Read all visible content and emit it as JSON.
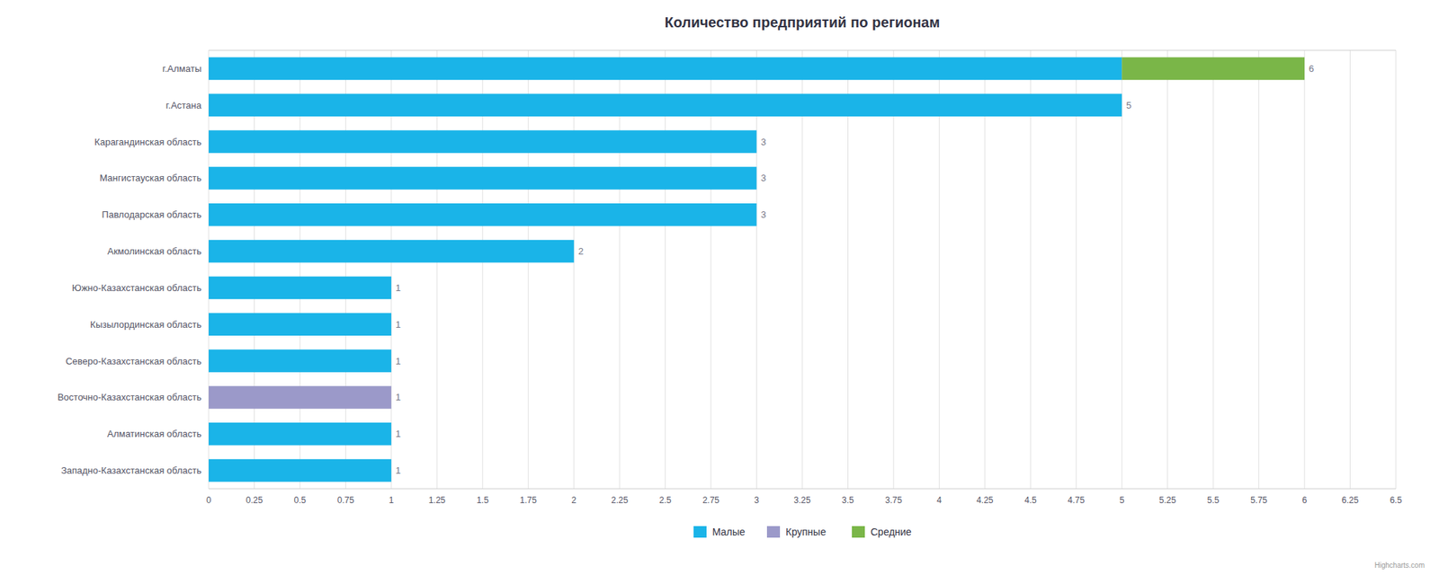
{
  "chart_data": {
    "type": "bar",
    "orientation": "horizontal",
    "stacked": true,
    "title": "Количество предприятий по регионам",
    "categories": [
      "Западно-Казахстанская область",
      "Алматинская область",
      "Восточно-Казахстанская область",
      "Северо-Казахстанская область",
      "Кызылординская область",
      "Южно-Казахстанская область",
      "Акмолинская область",
      "Павлодарская область",
      "Мангистауская область",
      "Карагандинская область",
      "г.Астана",
      "г.Алматы"
    ],
    "series": [
      {
        "name": "Малые",
        "color": "#1ab4e8",
        "values": [
          1,
          1,
          0,
          1,
          1,
          1,
          2,
          3,
          3,
          3,
          5,
          5
        ]
      },
      {
        "name": "Крупные",
        "color": "#9b99c9",
        "values": [
          0,
          0,
          1,
          0,
          0,
          0,
          0,
          0,
          0,
          0,
          0,
          0
        ]
      },
      {
        "name": "Средние",
        "color": "#7ab648",
        "values": [
          0,
          0,
          0,
          0,
          0,
          0,
          0,
          0,
          0,
          0,
          0,
          1
        ]
      }
    ],
    "value_labels": [
      1,
      1,
      1,
      1,
      1,
      1,
      2,
      3,
      3,
      3,
      5,
      6
    ],
    "xlim": [
      0,
      6.5
    ],
    "xticks": [
      0,
      0.25,
      0.5,
      0.75,
      1,
      1.25,
      1.5,
      1.75,
      2,
      2.25,
      2.5,
      2.75,
      3,
      3.25,
      3.5,
      3.75,
      4,
      4.25,
      4.5,
      4.75,
      5,
      5.25,
      5.5,
      5.75,
      6,
      6.25,
      6.5
    ],
    "grid": true,
    "legend": "bottom",
    "annotations": [
      "Highcharts.com"
    ]
  }
}
